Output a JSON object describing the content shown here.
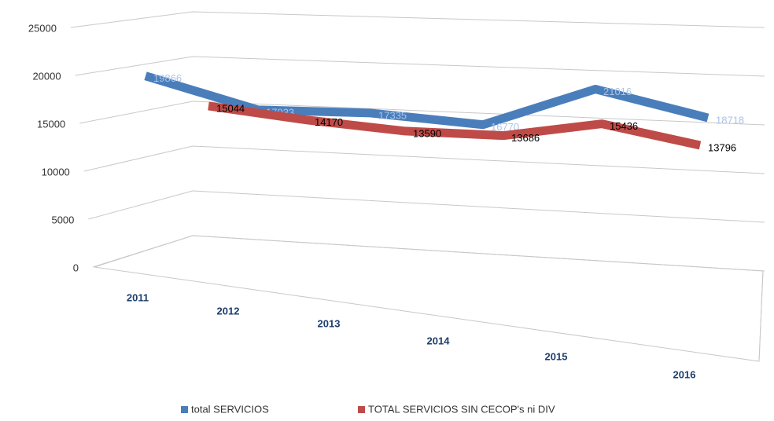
{
  "chart_data": {
    "type": "line3d",
    "categories": [
      "2011",
      "2012",
      "2013",
      "2014",
      "2015",
      "2016"
    ],
    "series": [
      {
        "name": "total SERVICIOS",
        "color": "#4a7ebb",
        "label_color": "#a9c4e8",
        "values": [
          19866,
          17033,
          17335,
          16770,
          21016,
          18718
        ]
      },
      {
        "name": "TOTAL SERVICIOS SIN CECOP's ni DIV",
        "color": "#be4b48",
        "label_color": "#000000",
        "values": [
          15044,
          14170,
          13590,
          13686,
          15436,
          13796
        ]
      }
    ],
    "ylim": [
      0,
      25000
    ],
    "yticks": [
      0,
      5000,
      10000,
      15000,
      20000,
      25000
    ],
    "grid": true
  }
}
